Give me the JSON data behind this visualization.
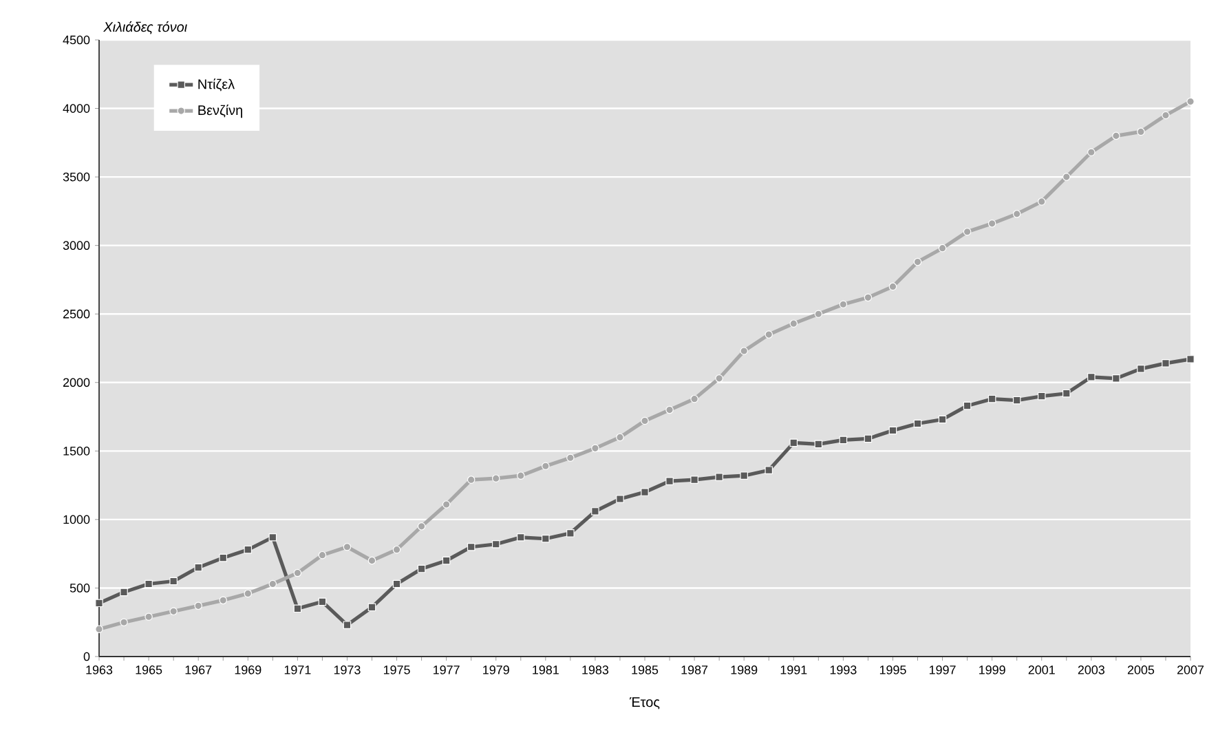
{
  "chart_data": {
    "type": "line",
    "ylabel": "*Χιλιάδες τόνοι*",
    "xlabel": "Έτος",
    "categories": [
      "1963",
      null,
      "1965",
      null,
      "1967",
      null,
      "1969",
      null,
      "1971",
      null,
      "1973",
      null,
      "1975",
      null,
      "1977",
      null,
      "1979",
      null,
      "1981",
      null,
      "1983",
      null,
      "1985",
      null,
      "1987",
      null,
      "1989",
      null,
      "1991",
      null,
      "1993",
      null,
      "1995",
      null,
      "1997",
      null,
      "1999",
      null,
      "2001",
      null,
      "2003",
      null,
      "2005",
      null,
      "2007"
    ],
    "series": [
      {
        "name": "Ντίζελ",
        "color": "#5a5a5a",
        "marker": "square",
        "values": [
          390,
          470,
          530,
          550,
          650,
          720,
          780,
          870,
          350,
          400,
          230,
          360,
          530,
          640,
          700,
          800,
          820,
          870,
          860,
          900,
          1060,
          1150,
          1200,
          1280,
          1290,
          1310,
          1320,
          1360,
          1560,
          1550,
          1580,
          1590,
          1650,
          1700,
          1730,
          1830,
          1880,
          1870,
          1900,
          1920,
          2040,
          2030,
          2100,
          2140,
          2170
        ]
      },
      {
        "name": "Βενζίνη",
        "color": "#a8a8a8",
        "marker": "circle",
        "values": [
          200,
          250,
          290,
          330,
          370,
          410,
          460,
          530,
          610,
          740,
          800,
          700,
          780,
          950,
          1110,
          1290,
          1300,
          1320,
          1390,
          1450,
          1520,
          1600,
          1720,
          1800,
          1880,
          2030,
          2230,
          2350,
          2430,
          2500,
          2570,
          2620,
          2700,
          2880,
          2980,
          3100,
          3160,
          3230,
          3320,
          3500,
          3680,
          3800,
          3830,
          3950,
          4050
        ]
      }
    ],
    "ylim": [
      0,
      4500
    ],
    "yticks": [
      0,
      500,
      1000,
      1500,
      2000,
      2500,
      3000,
      3500,
      4000,
      4500
    ],
    "grid": "y",
    "legend": "top left",
    "line_style": "solid"
  }
}
